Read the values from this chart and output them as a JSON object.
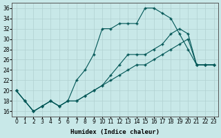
{
  "xlabel": "Humidex (Indice chaleur)",
  "background_color": "#c8e8e8",
  "grid_color": "#b0d0d0",
  "line_color": "#005555",
  "xlim": [
    -0.5,
    23.5
  ],
  "ylim": [
    15,
    37
  ],
  "xticks": [
    0,
    1,
    2,
    3,
    4,
    5,
    6,
    7,
    8,
    9,
    10,
    11,
    12,
    13,
    14,
    15,
    16,
    17,
    18,
    19,
    20,
    21,
    22,
    23
  ],
  "yticks": [
    16,
    18,
    20,
    22,
    24,
    26,
    28,
    30,
    32,
    34,
    36
  ],
  "line1_x": [
    0,
    1,
    2,
    3,
    4,
    5,
    6,
    7,
    8,
    9,
    10,
    11,
    12,
    13,
    14,
    15,
    16,
    17,
    18,
    19,
    20,
    21,
    22,
    23
  ],
  "line1_y": [
    20,
    18,
    16,
    17,
    18,
    17,
    18,
    18,
    19,
    20,
    21,
    22,
    23,
    24,
    25,
    25,
    26,
    27,
    28,
    29,
    30,
    25,
    25,
    25
  ],
  "line2_x": [
    0,
    1,
    2,
    3,
    4,
    5,
    6,
    7,
    8,
    9,
    10,
    11,
    12,
    13,
    14,
    15,
    16,
    17,
    18,
    19,
    20,
    21,
    22,
    23
  ],
  "line2_y": [
    20,
    18,
    16,
    17,
    18,
    17,
    18,
    22,
    24,
    27,
    32,
    32,
    33,
    33,
    33,
    36,
    36,
    35,
    34,
    31,
    28,
    25,
    25,
    25
  ],
  "line3_x": [
    0,
    1,
    2,
    3,
    4,
    5,
    6,
    7,
    8,
    9,
    10,
    11,
    12,
    13,
    14,
    15,
    16,
    17,
    18,
    19,
    20,
    21,
    22,
    23
  ],
  "line3_y": [
    20,
    18,
    16,
    17,
    18,
    17,
    18,
    18,
    19,
    20,
    21,
    23,
    25,
    27,
    27,
    27,
    28,
    29,
    31,
    32,
    31,
    25,
    25,
    25
  ],
  "marker": "+",
  "marker_size": 3.5,
  "line_width": 0.8,
  "font_size_label": 6.5,
  "font_size_tick": 5.5
}
